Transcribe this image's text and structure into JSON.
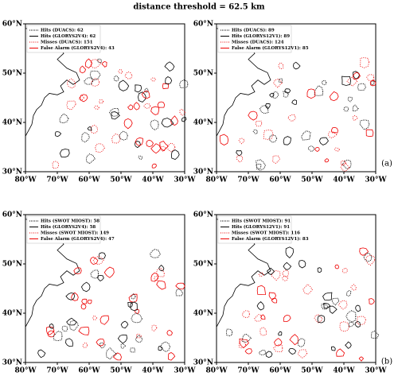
{
  "title": "distance threshold = 62.5 km",
  "panels": [
    {
      "legend": [
        "Hits (DUACS): 62",
        "Hits (GLORYS2V4): 62",
        "Misses (DUACS): 151",
        "False Alarm (GLORYS2V4): 43"
      ]
    },
    {
      "legend": [
        "Hits (DUACS): 89",
        "Hits (GLORYS12V1): 89",
        "Misses (DUACS): 124",
        "False Alarm (GLORYS12V1): 85"
      ]
    },
    {
      "legend": [
        "Hits (SWOT MIOST): 58",
        "Hits (GLORYS2V4): 58",
        "Misses (SWOT MIOST): 149",
        "False Alarm (GLORYS2V4): 47"
      ]
    },
    {
      "legend": [
        "Hits (SWOT MIOST): 91",
        "Hits (GLORYS12V1): 91",
        "Misses (SWOT MIOST): 116",
        "False Alarm (GLORYS12V1): 83"
      ]
    }
  ],
  "x_ticks": [
    "80°W",
    "70°W",
    "60°W",
    "50°W",
    "40°W",
    "30°W"
  ],
  "y_ticks": [
    "60°N",
    "50°N",
    "40°N",
    "30°N"
  ],
  "row_labels": [
    "(a)",
    "(b)"
  ]
}
